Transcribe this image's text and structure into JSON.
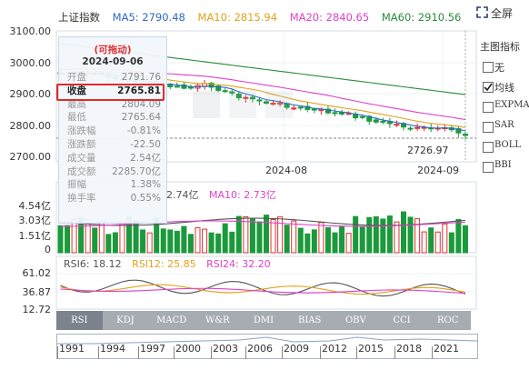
{
  "header": {
    "title": "上证指数",
    "ma5": "MA5: 2790.48",
    "ma10": "MA10: 2815.94",
    "ma20": "MA20: 2840.65",
    "ma60": "MA60: 2910.56",
    "fullscreen": "全屏"
  },
  "y_axis_price": [
    "3100.00",
    "3000.00",
    "2900.00",
    "2800.00",
    "2700.00"
  ],
  "x_axis_dates": [
    "2024-08",
    "2024-09"
  ],
  "last_price_label": "2726.97",
  "tooltip": {
    "title": "(可拖动)",
    "date": "2024-09-06",
    "rows": [
      {
        "label": "开盘",
        "value": "2791.76"
      },
      {
        "label": "收盘",
        "value": "2765.81"
      },
      {
        "label": "最高",
        "value": "2804.09"
      },
      {
        "label": "最低",
        "value": "2765.64"
      },
      {
        "label": "涨跌幅",
        "value": "-0.81%"
      },
      {
        "label": "涨跌额",
        "value": "-22.50"
      },
      {
        "label": "成交量",
        "value": "2.54亿"
      },
      {
        "label": "成交额",
        "value": "2285.70亿"
      },
      {
        "label": "振幅",
        "value": "1.38%"
      },
      {
        "label": "换手率",
        "value": "0.55%"
      }
    ]
  },
  "volume": {
    "legend_ma5": "2.74亿",
    "legend_ma10": "MA10: 2.73亿",
    "y_axis": [
      "4.54亿",
      "3.03亿",
      "1.51亿",
      "0"
    ]
  },
  "rsi": {
    "rsi6": "RSI6: 18.12",
    "rsi12": "RSI12: 25.85",
    "rsi24": "RSI24: 32.20",
    "y_axis": [
      "61.02",
      "36.87",
      "12.72"
    ]
  },
  "indicator_tabs": [
    "RSI",
    "KDJ",
    "MACD",
    "W&R",
    "DMI",
    "BIAS",
    "OBV",
    "CCI",
    "ROC"
  ],
  "timeline_years": [
    "1991",
    "1994",
    "1997",
    "2000",
    "2003",
    "2006",
    "2009",
    "2012",
    "2015",
    "2018",
    "2021"
  ],
  "sidebar": {
    "title": "主图指标",
    "options": [
      {
        "label": "无",
        "checked": false
      },
      {
        "label": "均线",
        "checked": true
      },
      {
        "label": "EXPMA",
        "checked": false
      },
      {
        "label": "SAR",
        "checked": false
      },
      {
        "label": "BOLL",
        "checked": false
      },
      {
        "label": "BBI",
        "checked": false
      }
    ]
  },
  "colors": {
    "up": "#e03030",
    "down": "#1a9a3a",
    "ma5": "#2f68c8",
    "ma10": "#e3a21a",
    "ma20": "#e040c8",
    "ma60": "#2a8c3a"
  }
}
